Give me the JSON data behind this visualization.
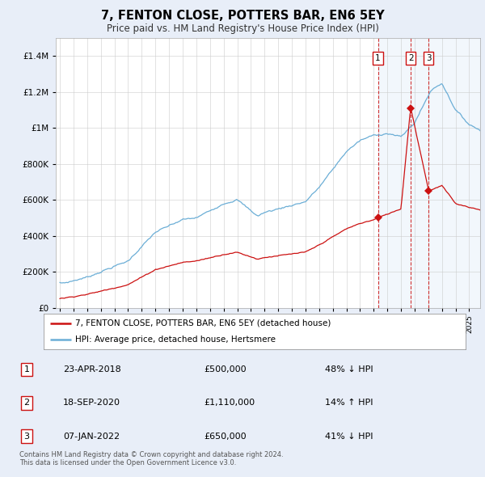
{
  "title": "7, FENTON CLOSE, POTTERS BAR, EN6 5EY",
  "subtitle": "Price paid vs. HM Land Registry's House Price Index (HPI)",
  "background_color": "#e8eef8",
  "plot_bg_color": "#ffffff",
  "ylim": [
    0,
    1500000
  ],
  "yticks": [
    0,
    200000,
    400000,
    600000,
    800000,
    1000000,
    1200000,
    1400000
  ],
  "ytick_labels": [
    "£0",
    "£200K",
    "£400K",
    "£600K",
    "£800K",
    "£1M",
    "£1.2M",
    "£1.4M"
  ],
  "hpi_color": "#6baed6",
  "price_color": "#cc1111",
  "sale_marker_color": "#cc1111",
  "vline_color": "#cc1111",
  "shade_color": "#ddeeff",
  "transactions": [
    {
      "label": "1",
      "date": 2018.31,
      "price": 500000,
      "note": "23-APR-2018",
      "price_str": "£500,000",
      "hpi_note": "48% ↓ HPI"
    },
    {
      "label": "2",
      "date": 2020.72,
      "price": 1110000,
      "note": "18-SEP-2020",
      "price_str": "£1,110,000",
      "hpi_note": "14% ↑ HPI"
    },
    {
      "label": "3",
      "date": 2022.02,
      "price": 650000,
      "note": "07-JAN-2022",
      "price_str": "£650,000",
      "hpi_note": "41% ↓ HPI"
    }
  ],
  "legend_entries": [
    {
      "label": "7, FENTON CLOSE, POTTERS BAR, EN6 5EY (detached house)",
      "color": "#cc1111"
    },
    {
      "label": "HPI: Average price, detached house, Hertsmere",
      "color": "#6baed6"
    }
  ],
  "footer": "Contains HM Land Registry data © Crown copyright and database right 2024.\nThis data is licensed under the Open Government Licence v3.0.",
  "xlim_left": 1994.7,
  "xlim_right": 2025.8
}
